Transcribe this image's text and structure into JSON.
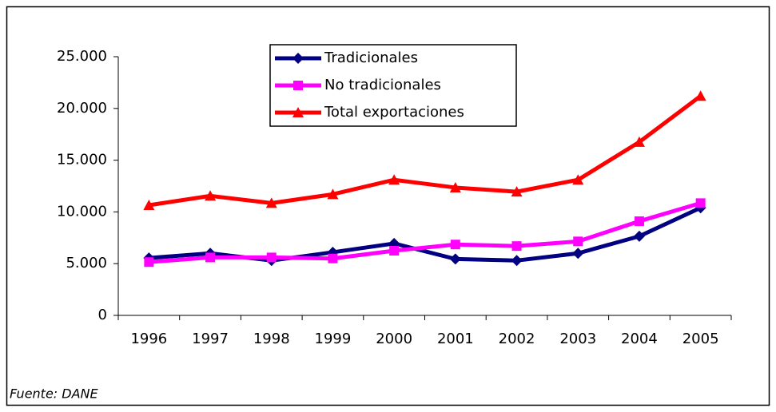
{
  "chart_data": {
    "type": "line",
    "categories": [
      "1996",
      "1997",
      "1998",
      "1999",
      "2000",
      "2001",
      "2002",
      "2003",
      "2004",
      "2005"
    ],
    "series": [
      {
        "name": "Tradicionales",
        "color": "#000080",
        "marker": "diamond",
        "values": [
          5550,
          6000,
          5300,
          6100,
          6950,
          5450,
          5300,
          6000,
          7650,
          10400
        ]
      },
      {
        "name": "No tradicionales",
        "color": "#ff00ff",
        "marker": "square",
        "values": [
          5150,
          5600,
          5600,
          5500,
          6250,
          6850,
          6700,
          7150,
          9100,
          10850
        ]
      },
      {
        "name": "Total exportaciones",
        "color": "#ff0000",
        "marker": "triangle",
        "values": [
          10650,
          11550,
          10850,
          11700,
          13100,
          12350,
          11950,
          13100,
          16750,
          21200
        ]
      }
    ],
    "ylim": [
      0,
      25000
    ],
    "yticks": [
      0,
      {
        "value": 5000,
        "label": "5.000"
      },
      {
        "value": 10000,
        "label": "10.000"
      },
      {
        "value": 15000,
        "label": "15.000"
      },
      {
        "value": 20000,
        "label": "20.000"
      },
      {
        "value": 25000,
        "label": "25.000"
      }
    ],
    "grid": false,
    "legend": "top",
    "note": "Fuente:  DANE"
  }
}
